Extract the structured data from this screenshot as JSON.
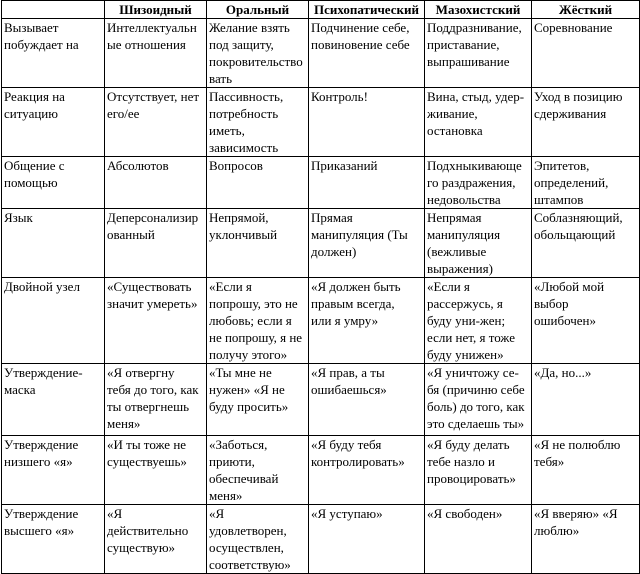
{
  "headers": [
    "",
    "Шизоидный",
    "Оральный",
    "Психопатический",
    "Мазохистский",
    "Жёсткий"
  ],
  "rows": [
    {
      "label": "Вызывает\nпобуждает на",
      "cells": [
        "Интеллектуальн\nые отношения",
        "Желание взять\nпод защиту,\nпокровительство\nвать",
        "Подчинение себе,\nповиновение себе",
        "Поддразнивание,\nприставание,\nвыпрашивание",
        "Соревнование"
      ]
    },
    {
      "label": "Реакция на\nситуацию",
      "cells": [
        "Отсутствует, нет\nего/ее",
        "Пассивность,\nпотребность\nиметь,\nзависимость",
        "Контроль!",
        "Вина, стыд, удер-\nживание,\nостановка",
        "Уход в позицию\nсдерживания"
      ]
    },
    {
      "label": "Общение с\nпомощью",
      "cells": [
        "Абсолютов",
        "Вопросов",
        "Приказаний",
        "Подхныкивающе\nго раздражения,\nнедовольства",
        "Эпитетов,\nопределений,\nштампов"
      ]
    },
    {
      "label": "Язык",
      "cells": [
        "Деперсонализир\nованный",
        "Непрямой,\nуклончивый",
        "Прямая\nманипуляция (Ты\nдолжен)",
        "Непрямая\nманипуляция\n(вежливые\nвыражения)",
        "Соблазняющий,\nобольщающий"
      ]
    },
    {
      "label": "Двойной узел",
      "cells": [
        "«Существовать\nзначит умереть»",
        "«Если я\nпопрошу, это не\nлюбовь; если я\nне попрошу, я не\nполучу этого»",
        "«Я должен быть\nправым всегда,\nили я умру»",
        "«Если я\nрассержусь, я\nбуду уни-жен;\nесли нет, я тоже\nбуду унижен»",
        "«Любой мой\nвыбор\nошибочен»"
      ]
    },
    {
      "label": "Утверждение-\nмаска",
      "cells": [
        "«Я отвергну\nтебя до того, как\nты отвергнешь\nменя»",
        "«Ты мне не\nнужен» «Я не\nбуду просить»",
        "«Я прав, а ты\nошибаешься»",
        "«Я уничтожу се-\nбя (причиню себе\nболь) до того, как\nэто сделаешь ты»",
        "«Да, но...»"
      ]
    },
    {
      "label": "Утверждение\nнизшего «я»",
      "cells": [
        "«И ты тоже не\nсуществуешь»",
        "«Заботься,\nприюти,\nобеспечивай\nменя»",
        "«Я буду тебя\nконтролировать»",
        "«Я буду делать\nтебе назло и\nпровоцировать»",
        "«Я не полюблю\nтебя»"
      ]
    },
    {
      "label": "Утверждение\nвысшего «я»",
      "cells": [
        "«Я\nдействительно\nсуществую»",
        "«Я\nудовлетворен,\nосуществлен,\nсоответствую»",
        "«Я уступаю»",
        "«Я свободен»",
        "«Я вверяю» «Я\nлюблю»"
      ]
    }
  ]
}
